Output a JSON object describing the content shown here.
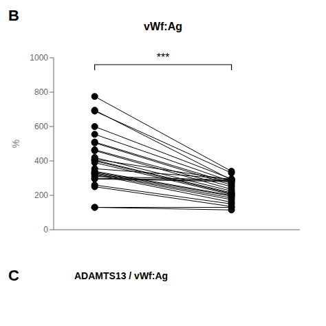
{
  "chart_data": {
    "type": "line",
    "title": "vWf:Ag",
    "panel_label": "B",
    "ylabel": "%",
    "x": [
      1,
      2
    ],
    "xlim": [
      0.7,
      2.5
    ],
    "xticks": [
      1,
      2
    ],
    "ylim": [
      0,
      1000
    ],
    "yticks": [
      0,
      200,
      400,
      600,
      800,
      1000
    ],
    "tick_labels": "y",
    "grid": false,
    "color": "black",
    "marker": "circle",
    "series": [
      {
        "values": [
          775,
          340
        ]
      },
      {
        "values": [
          695,
          290
        ]
      },
      {
        "values": [
          690,
          330
        ]
      },
      {
        "values": [
          600,
          295
        ]
      },
      {
        "values": [
          555,
          280
        ]
      },
      {
        "values": [
          510,
          270
        ]
      },
      {
        "values": [
          505,
          260
        ]
      },
      {
        "values": [
          465,
          250
        ]
      },
      {
        "values": [
          460,
          235
        ]
      },
      {
        "values": [
          420,
          225
        ]
      },
      {
        "values": [
          410,
          290
        ]
      },
      {
        "values": [
          405,
          215
        ]
      },
      {
        "values": [
          400,
          210
        ]
      },
      {
        "values": [
          390,
          205
        ]
      },
      {
        "values": [
          355,
          295
        ]
      },
      {
        "values": [
          340,
          200
        ]
      },
      {
        "values": [
          335,
          195
        ]
      },
      {
        "values": [
          330,
          185
        ]
      },
      {
        "values": [
          325,
          175
        ]
      },
      {
        "values": [
          320,
          160
        ]
      },
      {
        "values": [
          310,
          290
        ]
      },
      {
        "values": [
          300,
          285
        ]
      },
      {
        "values": [
          295,
          280
        ]
      },
      {
        "values": [
          260,
          150
        ]
      },
      {
        "values": [
          250,
          135
        ]
      },
      {
        "values": [
          130,
          130
        ]
      },
      {
        "values": [
          130,
          115
        ]
      }
    ],
    "annotations": [
      {
        "text": "***",
        "x": [
          1,
          2
        ],
        "y": 960
      }
    ],
    "bottom_label": "C",
    "bottom_subtitle": "ADAMTS13 / vWf:Ag"
  }
}
